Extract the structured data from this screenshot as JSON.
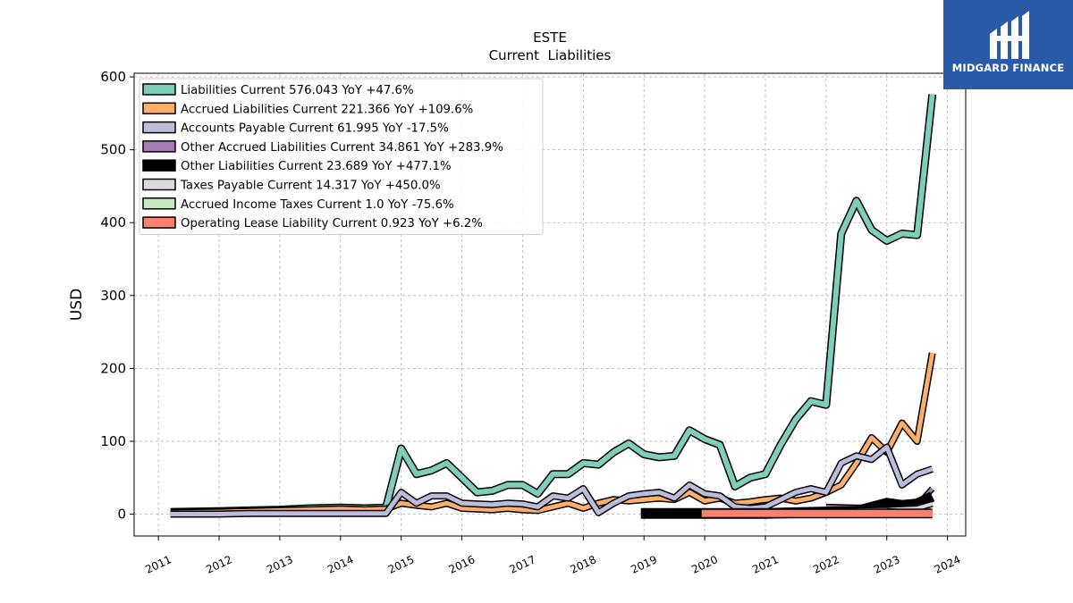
{
  "brand": {
    "name": "MIDGARD FINANCE",
    "bg_color": "#2a5aa8"
  },
  "chart_data": {
    "type": "line",
    "title": "ESTE",
    "subtitle": "Current  Liabilities",
    "xlabel": "",
    "ylabel": "USD",
    "ylim": [
      -30,
      605
    ],
    "xlim": [
      2010.6,
      2024.3
    ],
    "x_ticks": [
      2011,
      2012,
      2013,
      2014,
      2015,
      2016,
      2017,
      2018,
      2019,
      2020,
      2021,
      2022,
      2023,
      2024
    ],
    "y_ticks": [
      0,
      100,
      200,
      300,
      400,
      500,
      600
    ],
    "grid": true,
    "legend_position": "top-left",
    "series": [
      {
        "name": "Liabilities Current",
        "legend_label": "Liabilities Current  576.043 YoY +47.6%",
        "color": "#7fcdbb",
        "width": 6,
        "points": [
          [
            2011.2,
            3
          ],
          [
            2012.0,
            4
          ],
          [
            2012.5,
            5
          ],
          [
            2013.0,
            6
          ],
          [
            2013.5,
            8
          ],
          [
            2014.0,
            9
          ],
          [
            2014.4,
            8
          ],
          [
            2014.75,
            9
          ],
          [
            2015.0,
            90
          ],
          [
            2015.25,
            55
          ],
          [
            2015.5,
            60
          ],
          [
            2015.75,
            70
          ],
          [
            2016.0,
            50
          ],
          [
            2016.25,
            30
          ],
          [
            2016.5,
            32
          ],
          [
            2016.75,
            40
          ],
          [
            2017.0,
            40
          ],
          [
            2017.25,
            28
          ],
          [
            2017.5,
            55
          ],
          [
            2017.75,
            55
          ],
          [
            2018.0,
            70
          ],
          [
            2018.25,
            68
          ],
          [
            2018.5,
            85
          ],
          [
            2018.75,
            97
          ],
          [
            2019.0,
            82
          ],
          [
            2019.25,
            78
          ],
          [
            2019.5,
            80
          ],
          [
            2019.75,
            115
          ],
          [
            2020.0,
            103
          ],
          [
            2020.25,
            95
          ],
          [
            2020.5,
            38
          ],
          [
            2020.75,
            50
          ],
          [
            2021.0,
            55
          ],
          [
            2021.25,
            95
          ],
          [
            2021.5,
            130
          ],
          [
            2021.75,
            155
          ],
          [
            2022.0,
            150
          ],
          [
            2022.25,
            385
          ],
          [
            2022.5,
            430
          ],
          [
            2022.75,
            390
          ],
          [
            2023.0,
            375
          ],
          [
            2023.25,
            385
          ],
          [
            2023.5,
            383
          ],
          [
            2023.75,
            576
          ]
        ]
      },
      {
        "name": "Accrued Liabilities Current",
        "legend_label": "Accrued Liabilities Current  221.366 YoY +109.6%",
        "color": "#fdae6b",
        "width": 5,
        "points": [
          [
            2011.2,
            2
          ],
          [
            2012.0,
            3
          ],
          [
            2012.5,
            4
          ],
          [
            2013.0,
            5
          ],
          [
            2013.5,
            6
          ],
          [
            2014.0,
            7
          ],
          [
            2014.4,
            6
          ],
          [
            2014.75,
            7
          ],
          [
            2015.0,
            15
          ],
          [
            2015.25,
            12
          ],
          [
            2015.5,
            10
          ],
          [
            2015.75,
            15
          ],
          [
            2016.0,
            8
          ],
          [
            2016.25,
            7
          ],
          [
            2016.5,
            6
          ],
          [
            2016.75,
            8
          ],
          [
            2017.0,
            6
          ],
          [
            2017.25,
            5
          ],
          [
            2017.5,
            10
          ],
          [
            2017.75,
            15
          ],
          [
            2018.0,
            8
          ],
          [
            2018.25,
            15
          ],
          [
            2018.5,
            20
          ],
          [
            2018.75,
            18
          ],
          [
            2019.0,
            20
          ],
          [
            2019.25,
            22
          ],
          [
            2019.5,
            20
          ],
          [
            2019.75,
            30
          ],
          [
            2020.0,
            18
          ],
          [
            2020.25,
            22
          ],
          [
            2020.5,
            15
          ],
          [
            2020.75,
            17
          ],
          [
            2021.0,
            20
          ],
          [
            2021.25,
            22
          ],
          [
            2021.5,
            18
          ],
          [
            2021.75,
            22
          ],
          [
            2022.0,
            30
          ],
          [
            2022.25,
            40
          ],
          [
            2022.5,
            70
          ],
          [
            2022.75,
            105
          ],
          [
            2023.0,
            85
          ],
          [
            2023.25,
            125
          ],
          [
            2023.5,
            100
          ],
          [
            2023.75,
            221
          ]
        ]
      },
      {
        "name": "Accounts Payable Current",
        "legend_label": "Accounts Payable Current  61.995 YoY -17.5%",
        "color": "#bcbddc",
        "width": 5,
        "points": [
          [
            2011.2,
            0
          ],
          [
            2012.0,
            0
          ],
          [
            2012.5,
            1
          ],
          [
            2013.0,
            1
          ],
          [
            2013.5,
            1
          ],
          [
            2014.0,
            1
          ],
          [
            2014.4,
            1
          ],
          [
            2014.75,
            1
          ],
          [
            2015.0,
            30
          ],
          [
            2015.25,
            15
          ],
          [
            2015.5,
            25
          ],
          [
            2015.75,
            25
          ],
          [
            2016.0,
            15
          ],
          [
            2016.25,
            14
          ],
          [
            2016.5,
            13
          ],
          [
            2016.75,
            15
          ],
          [
            2017.0,
            14
          ],
          [
            2017.25,
            10
          ],
          [
            2017.5,
            25
          ],
          [
            2017.75,
            22
          ],
          [
            2018.0,
            35
          ],
          [
            2018.25,
            2
          ],
          [
            2018.5,
            15
          ],
          [
            2018.75,
            25
          ],
          [
            2019.0,
            28
          ],
          [
            2019.25,
            30
          ],
          [
            2019.5,
            22
          ],
          [
            2019.75,
            40
          ],
          [
            2020.0,
            28
          ],
          [
            2020.25,
            25
          ],
          [
            2020.5,
            10
          ],
          [
            2020.75,
            8
          ],
          [
            2021.0,
            10
          ],
          [
            2021.25,
            20
          ],
          [
            2021.5,
            30
          ],
          [
            2021.75,
            35
          ],
          [
            2022.0,
            30
          ],
          [
            2022.25,
            70
          ],
          [
            2022.5,
            80
          ],
          [
            2022.75,
            75
          ],
          [
            2023.0,
            92
          ],
          [
            2023.25,
            40
          ],
          [
            2023.5,
            55
          ],
          [
            2023.75,
            62
          ]
        ]
      },
      {
        "name": "Other Accrued Liabilities Current",
        "legend_label": "Other Accrued Liabilities Current  34.861 YoY +283.9%",
        "color": "#a97cb5",
        "width": 4,
        "points": [
          [
            2022.0,
            10
          ],
          [
            2022.5,
            9
          ],
          [
            2023.0,
            9
          ],
          [
            2023.5,
            12
          ],
          [
            2023.75,
            35
          ]
        ]
      },
      {
        "name": "Other Liabilities Current",
        "legend_label": "Other Liabilities Current  23.689 YoY +477.1%",
        "color": "#000000",
        "width": 9,
        "points": [
          [
            2018.95,
            1
          ],
          [
            2019.5,
            1
          ],
          [
            2020.0,
            1
          ],
          [
            2020.5,
            1
          ],
          [
            2021.0,
            1
          ],
          [
            2021.5,
            2
          ],
          [
            2022.0,
            3
          ],
          [
            2022.5,
            4
          ],
          [
            2023.0,
            15
          ],
          [
            2023.25,
            12
          ],
          [
            2023.5,
            14
          ],
          [
            2023.75,
            24
          ]
        ]
      },
      {
        "name": "Taxes Payable Current",
        "legend_label": "Taxes Payable Current  14.317 YoY +450.0%",
        "color": "#d9d9d9",
        "width": 4,
        "points": [
          [
            2022.0,
            2
          ],
          [
            2022.5,
            5
          ],
          [
            2023.0,
            6
          ],
          [
            2023.5,
            8
          ],
          [
            2023.75,
            14
          ]
        ]
      },
      {
        "name": "Accrued Income Taxes Current",
        "legend_label": "Accrued Income Taxes Current  1.0 YoY -75.6%",
        "color": "#c7e9c0",
        "width": 4,
        "points": [
          [
            2023.0,
            4
          ],
          [
            2023.5,
            2
          ],
          [
            2023.75,
            1
          ]
        ]
      },
      {
        "name": "Operating Lease Liability Current",
        "legend_label": "Operating Lease Liability Current  0.923 YoY +6.2%",
        "color": "#fb8072",
        "width": 8,
        "points": [
          [
            2019.95,
            1
          ],
          [
            2020.5,
            1
          ],
          [
            2021.0,
            1
          ],
          [
            2021.5,
            1
          ],
          [
            2022.0,
            1
          ],
          [
            2022.5,
            1
          ],
          [
            2023.0,
            1
          ],
          [
            2023.5,
            1
          ],
          [
            2023.75,
            1
          ]
        ]
      }
    ]
  }
}
